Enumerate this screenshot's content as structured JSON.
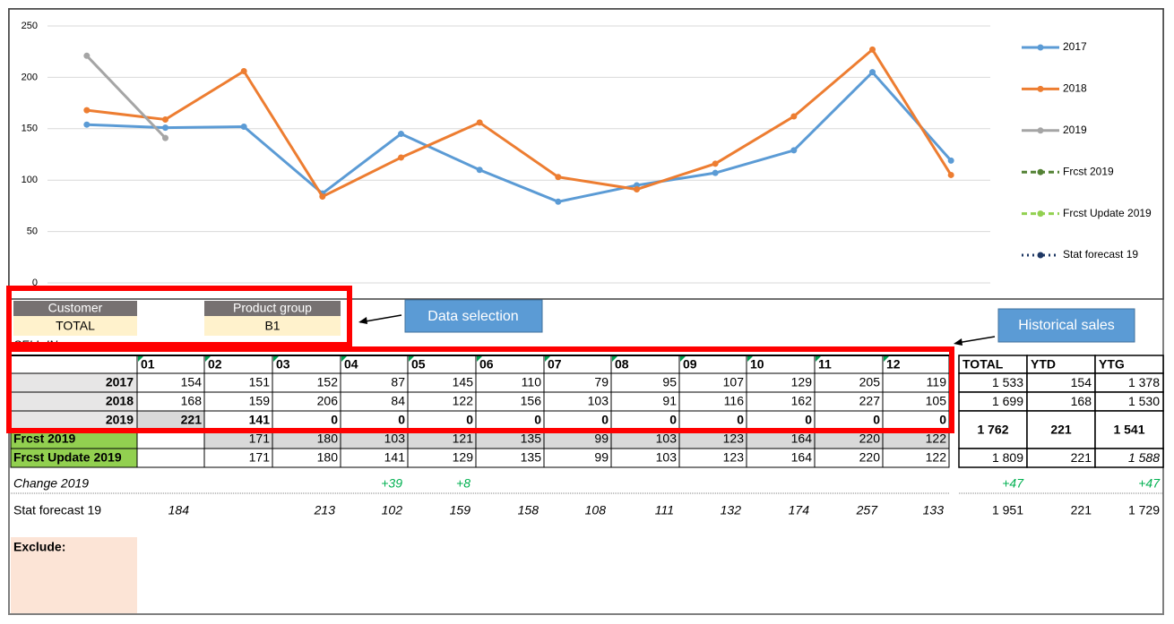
{
  "chart_data": {
    "type": "line",
    "categories": [
      null,
      null,
      null,
      null,
      null,
      null,
      null,
      null,
      null,
      null,
      null,
      null
    ],
    "ylim": [
      0,
      250
    ],
    "yticks": [
      0,
      50,
      100,
      150,
      200,
      250
    ],
    "grid": true,
    "legend": "right",
    "series": [
      {
        "name": "2017",
        "color": "#5b9bd5",
        "values": [
          154,
          151,
          152,
          87,
          145,
          110,
          79,
          95,
          107,
          129,
          205,
          119
        ]
      },
      {
        "name": "2018",
        "color": "#ed7d31",
        "values": [
          168,
          159,
          206,
          84,
          122,
          156,
          103,
          91,
          116,
          162,
          227,
          105
        ]
      },
      {
        "name": "2019",
        "color": "#a5a5a5",
        "values": [
          221,
          141,
          null,
          null,
          null,
          null,
          null,
          null,
          null,
          null,
          null,
          null
        ]
      },
      {
        "name": "Frcst 2019",
        "color": "#548235",
        "dash": "6,4",
        "values": [
          null,
          null,
          null,
          null,
          null,
          null,
          null,
          null,
          null,
          null,
          null,
          null
        ]
      },
      {
        "name": "Frcst Update 2019",
        "color": "#92d050",
        "dash": "6,4",
        "values": [
          null,
          null,
          null,
          null,
          null,
          null,
          null,
          null,
          null,
          null,
          null,
          null
        ]
      },
      {
        "name": "Stat forecast 19",
        "color": "#1f3864",
        "dash": "2,4",
        "values": [
          null,
          null,
          null,
          null,
          null,
          null,
          null,
          null,
          null,
          null,
          null,
          null
        ]
      }
    ]
  },
  "selection": {
    "customer_label": "Customer",
    "customer": "TOTAL",
    "product_label": "Product group",
    "product": "B1",
    "sheet": "SELL-IN"
  },
  "callouts": [
    "Data selection",
    "Historical sales"
  ],
  "table": {
    "header": [
      "01",
      "02",
      "03",
      "04",
      "05",
      "06",
      "07",
      "08",
      "09",
      "10",
      "11",
      "12"
    ],
    "totals_header": [
      "TOTAL",
      "YTD",
      "YTG"
    ],
    "rows": [
      {
        "label": "2017",
        "cells": [
          "154",
          "151",
          "152",
          "87",
          "145",
          "110",
          "79",
          "95",
          "107",
          "129",
          "205",
          "119"
        ],
        "totals": [
          "1 533",
          "154",
          "1 378"
        ]
      },
      {
        "label": "2018",
        "cells": [
          "168",
          "159",
          "206",
          "84",
          "122",
          "156",
          "103",
          "91",
          "116",
          "162",
          "227",
          "105"
        ],
        "totals": [
          "1 699",
          "168",
          "1 530"
        ]
      },
      {
        "label": "2019",
        "cells": [
          "221",
          "141",
          "0",
          "0",
          "0",
          "0",
          "0",
          "0",
          "0",
          "0",
          "0",
          "0"
        ],
        "totals": [
          "1 762",
          "221",
          "1 541"
        ]
      },
      {
        "label": "Frcst 2019",
        "cells": [
          null,
          "171",
          "180",
          "103",
          "121",
          "135",
          "99",
          "103",
          "123",
          "164",
          "220",
          "122"
        ]
      },
      {
        "label": "Frcst Update 2019",
        "cells": [
          null,
          "171",
          "180",
          "141",
          "129",
          "135",
          "99",
          "103",
          "123",
          "164",
          "220",
          "122"
        ],
        "totals": [
          "1 809",
          "221",
          "1 588"
        ]
      }
    ],
    "change": {
      "label": "Change 2019",
      "cells": [
        null,
        null,
        null,
        "+39",
        "+8",
        null,
        null,
        null,
        null,
        null,
        null,
        null
      ],
      "totals": [
        "+47",
        null,
        "+47"
      ]
    },
    "stat": {
      "label": "Stat forecast 19",
      "cells": [
        "184",
        null,
        "213",
        "102",
        "159",
        "158",
        "108",
        "111",
        "132",
        "174",
        "257",
        "133"
      ],
      "totals": [
        "1 951",
        "221",
        "1 729"
      ]
    },
    "exclude": "Exclude:"
  }
}
